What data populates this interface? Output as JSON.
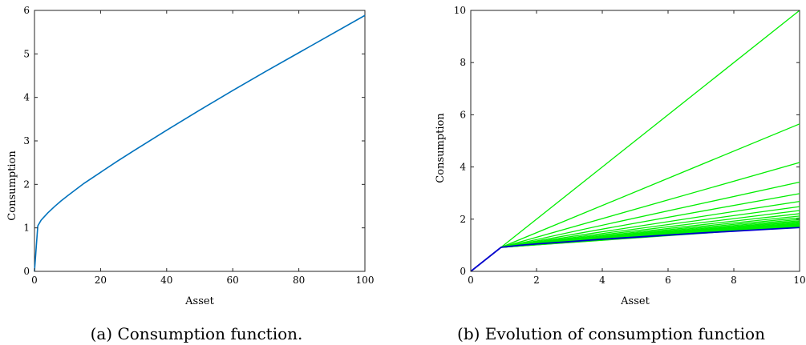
{
  "chart_data": [
    {
      "type": "line",
      "caption": "(a) Consumption function.",
      "xlabel": "Asset",
      "ylabel": "Consumption",
      "xlim": [
        0,
        100
      ],
      "ylim": [
        0,
        6
      ],
      "xticks": [
        "0",
        "20",
        "40",
        "60",
        "80",
        "100"
      ],
      "yticks": [
        "0",
        "1",
        "2",
        "3",
        "4",
        "5",
        "6"
      ],
      "grid": false,
      "series": [
        {
          "color": "#0072BD",
          "points": [
            [
              0,
              0
            ],
            [
              1,
              0.95
            ],
            [
              2,
              1.07
            ],
            [
              4,
              1.22
            ],
            [
              6,
              1.35
            ],
            [
              8,
              1.47
            ],
            [
              10,
              1.58
            ],
            [
              15,
              1.84
            ],
            [
              20,
              2.07
            ],
            [
              25,
              2.3
            ],
            [
              30,
              2.52
            ],
            [
              40,
              2.95
            ],
            [
              50,
              3.37
            ],
            [
              60,
              3.78
            ],
            [
              70,
              4.18
            ],
            [
              80,
              4.57
            ],
            [
              90,
              4.96
            ],
            [
              100,
              5.35
            ]
          ]
        }
      ]
    },
    {
      "type": "line",
      "caption": "(b) Evolution of consumption function",
      "xlabel": "Asset",
      "ylabel": "Consumption",
      "xlim": [
        0,
        10
      ],
      "ylim": [
        0,
        10
      ],
      "xticks": [
        "0",
        "2",
        "4",
        "6",
        "8",
        "10"
      ],
      "yticks": [
        "0",
        "2",
        "4",
        "6",
        "8",
        "10"
      ],
      "grid": false,
      "kink": [
        0.92,
        0.92
      ],
      "green_line_values_at_10": [
        10,
        5.65,
        4.17,
        3.42,
        2.98,
        2.68,
        2.48,
        2.33,
        2.21,
        2.12,
        2.05,
        1.99,
        1.94,
        1.9,
        1.86,
        1.83,
        1.8,
        1.78,
        1.76,
        1.74,
        1.72
      ],
      "green_color": "#00EE00",
      "final_series": {
        "color": "#0000CC",
        "points": [
          [
            0,
            0
          ],
          [
            0.92,
            0.92
          ],
          [
            1.5,
            1.0
          ],
          [
            2,
            1.05
          ],
          [
            3,
            1.14
          ],
          [
            4,
            1.23
          ],
          [
            5,
            1.31
          ],
          [
            6,
            1.39
          ],
          [
            7,
            1.47
          ],
          [
            8,
            1.54
          ],
          [
            9,
            1.61
          ],
          [
            10,
            1.68
          ]
        ]
      }
    }
  ]
}
